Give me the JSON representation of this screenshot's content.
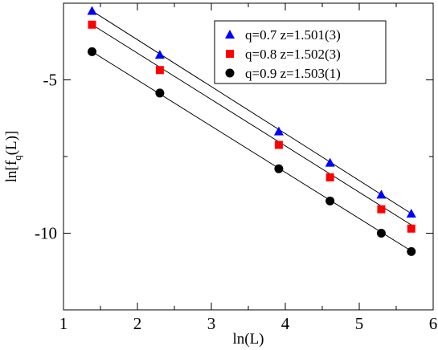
{
  "chart_data": {
    "type": "scatter",
    "xlabel": "ln(L)",
    "ylabel_main": "ln[f",
    "ylabel_sub": "q",
    "ylabel_tail": "(L)]",
    "xlim": [
      1,
      6
    ],
    "ylim": [
      -12.5,
      -2.5
    ],
    "xticks": [
      1,
      2,
      3,
      4,
      5,
      6
    ],
    "xtick_labels": [
      "1",
      "2",
      "3",
      "4",
      "5",
      "6"
    ],
    "yticks": [
      -10,
      -5
    ],
    "ytick_labels": [
      "-10",
      "-5"
    ],
    "grid": false,
    "legend_position": "top-right",
    "series": [
      {
        "name": "q=0.7 z=1.501(3)",
        "marker": "triangle",
        "color": "#0000ff",
        "x": [
          1.386,
          2.303,
          3.912,
          4.605,
          5.298,
          5.704
        ],
        "y": [
          -2.75,
          -4.18,
          -6.68,
          -7.7,
          -8.74,
          -9.36
        ],
        "fit": {
          "x": [
            1.386,
            5.704
          ],
          "y": [
            -2.75,
            -9.36
          ]
        }
      },
      {
        "name": "q=0.8 z=1.502(3)",
        "marker": "square",
        "color": "#ff0000",
        "x": [
          1.386,
          2.303,
          3.912,
          4.605,
          5.298,
          5.704
        ],
        "y": [
          -3.2,
          -4.68,
          -7.12,
          -8.18,
          -9.22,
          -9.85
        ],
        "fit": {
          "x": [
            1.386,
            5.704
          ],
          "y": [
            -3.2,
            -9.73
          ]
        }
      },
      {
        "name": "q=0.9 z=1.503(1)",
        "marker": "circle",
        "color": "#000000",
        "x": [
          1.386,
          2.303,
          3.912,
          4.605,
          5.298,
          5.704
        ],
        "y": [
          -4.08,
          -5.43,
          -7.9,
          -8.95,
          -10.0,
          -10.6
        ],
        "fit": {
          "x": [
            1.386,
            5.704
          ],
          "y": [
            -4.08,
            -10.58
          ]
        }
      }
    ]
  }
}
